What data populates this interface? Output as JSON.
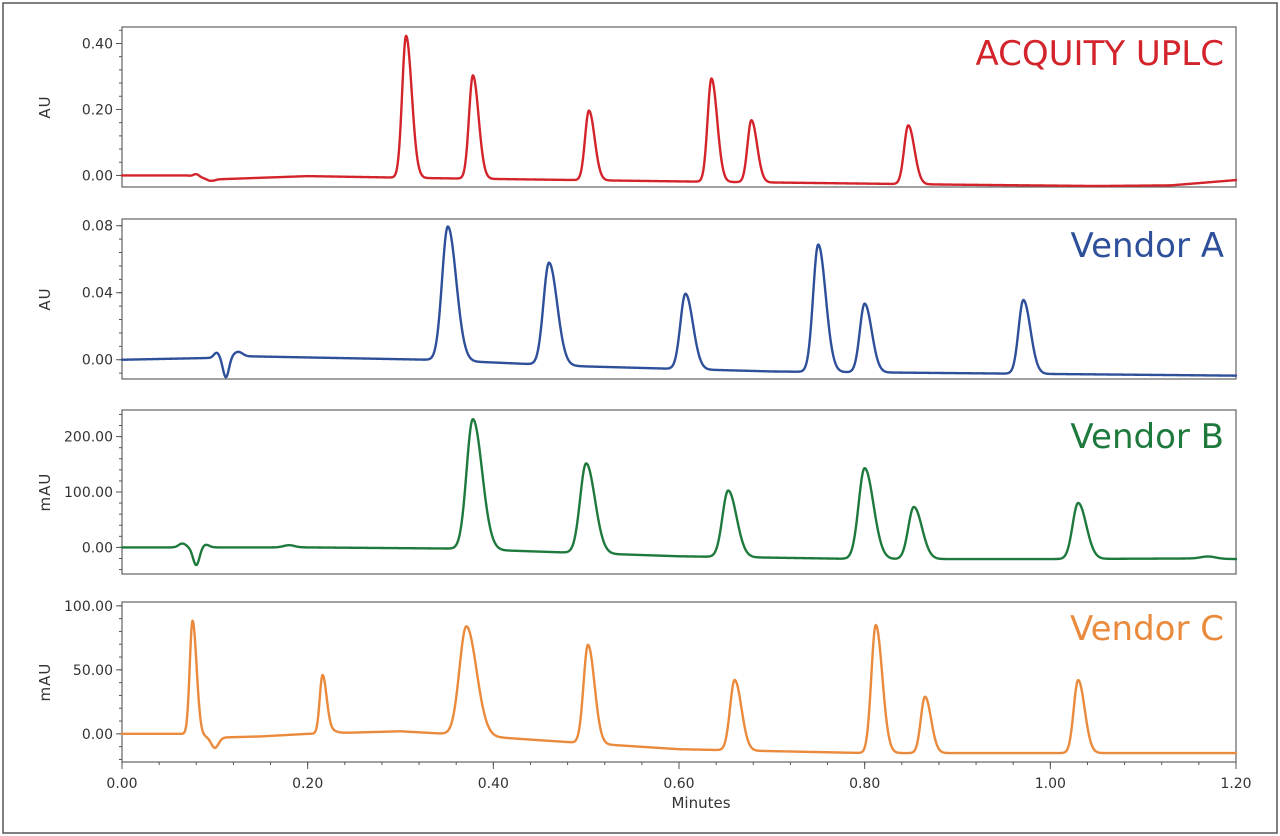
{
  "chart_data": {
    "type": "line",
    "xlabel": "Minutes",
    "x_ticks": [
      "0.00",
      "0.20",
      "0.40",
      "0.60",
      "0.80",
      "1.00",
      "1.20"
    ],
    "xlim": [
      0,
      1.2
    ],
    "panels": [
      {
        "title": "ACQUITY UPLC",
        "ylabel": "AU",
        "color": "#d3242c",
        "ylim": [
          -0.035,
          0.45
        ],
        "y_ticks": [
          0,
          0.2,
          0.4
        ],
        "y_tick_labels": [
          "0.00",
          "0.20",
          "0.40"
        ],
        "baseline": [
          [
            0,
            0
          ],
          [
            0.07,
            0
          ],
          [
            0.1,
            -0.012
          ],
          [
            0.2,
            -0.002
          ],
          [
            0.33,
            -0.008
          ],
          [
            0.6,
            -0.018
          ],
          [
            0.9,
            -0.028
          ],
          [
            1.05,
            -0.032
          ],
          [
            1.13,
            -0.03
          ],
          [
            1.2,
            -0.014
          ]
        ],
        "disturbances": [
          {
            "t": 0.08,
            "h": 0.008,
            "s": 0.003
          },
          {
            "t": 0.095,
            "h": -0.006,
            "s": 0.004
          }
        ],
        "peaks": [
          {
            "rt": 0.306,
            "height": 0.43,
            "width": 0.0042
          },
          {
            "rt": 0.378,
            "height": 0.313,
            "width": 0.0042
          },
          {
            "rt": 0.503,
            "height": 0.211,
            "width": 0.0042
          },
          {
            "rt": 0.635,
            "height": 0.313,
            "width": 0.0042
          },
          {
            "rt": 0.678,
            "height": 0.188,
            "width": 0.0042
          },
          {
            "rt": 0.847,
            "height": 0.178,
            "width": 0.0045
          }
        ]
      },
      {
        "title": "Vendor A",
        "ylabel": "AU",
        "color": "#2e4f9a",
        "ylim": [
          -0.0115,
          0.084
        ],
        "y_ticks": [
          0,
          0.04,
          0.08
        ],
        "y_tick_labels": [
          "0.00",
          "0.04",
          "0.08"
        ],
        "baseline": [
          [
            0,
            0
          ],
          [
            0.09,
            0.001
          ],
          [
            0.14,
            0.002
          ],
          [
            0.33,
            0
          ],
          [
            0.5,
            -0.004
          ],
          [
            0.7,
            -0.007
          ],
          [
            0.9,
            -0.008
          ],
          [
            1.1,
            -0.009
          ],
          [
            1.2,
            -0.0095
          ]
        ],
        "disturbances": [
          {
            "t": 0.102,
            "h": 0.003,
            "s": 0.003
          },
          {
            "t": 0.112,
            "h": -0.012,
            "s": 0.0032
          },
          {
            "t": 0.125,
            "h": 0.003,
            "s": 0.005
          }
        ],
        "peaks": [
          {
            "rt": 0.351,
            "height": 0.08,
            "width": 0.0062
          },
          {
            "rt": 0.46,
            "height": 0.061,
            "width": 0.006
          },
          {
            "rt": 0.607,
            "height": 0.045,
            "width": 0.0055
          },
          {
            "rt": 0.75,
            "height": 0.076,
            "width": 0.0055
          },
          {
            "rt": 0.8,
            "height": 0.041,
            "width": 0.0052
          },
          {
            "rt": 0.971,
            "height": 0.044,
            "width": 0.0052
          }
        ]
      },
      {
        "title": "Vendor B",
        "ylabel": "mAU",
        "color": "#1e7a3c",
        "ylim": [
          -48,
          248
        ],
        "y_ticks": [
          0,
          100,
          200
        ],
        "y_tick_labels": [
          "0.00",
          "100.00",
          "200.00"
        ],
        "baseline": [
          [
            0,
            0
          ],
          [
            0.1,
            0
          ],
          [
            0.2,
            0
          ],
          [
            0.35,
            -2
          ],
          [
            0.6,
            -16
          ],
          [
            0.8,
            -21
          ],
          [
            1.0,
            -21
          ],
          [
            1.15,
            -20
          ],
          [
            1.2,
            -21
          ]
        ],
        "disturbances": [
          {
            "t": 0.065,
            "h": 7,
            "s": 0.004
          },
          {
            "t": 0.08,
            "h": -32,
            "s": 0.0035
          },
          {
            "t": 0.09,
            "h": 5,
            "s": 0.004
          },
          {
            "t": 0.18,
            "h": 4,
            "s": 0.006
          },
          {
            "t": 1.17,
            "h": 4,
            "s": 0.008
          }
        ],
        "peaks": [
          {
            "rt": 0.378,
            "height": 235,
            "width": 0.0068
          },
          {
            "rt": 0.5,
            "height": 162,
            "width": 0.0065
          },
          {
            "rt": 0.653,
            "height": 120,
            "width": 0.0062
          },
          {
            "rt": 0.8,
            "height": 164,
            "width": 0.0065
          },
          {
            "rt": 0.853,
            "height": 94,
            "width": 0.006
          },
          {
            "rt": 1.03,
            "height": 101,
            "width": 0.006
          }
        ]
      },
      {
        "title": "Vendor C",
        "ylabel": "mAU",
        "color": "#ea8a3c",
        "ylim": [
          -22,
          103
        ],
        "y_ticks": [
          0,
          50,
          100
        ],
        "y_tick_labels": [
          "0.00",
          "50.00",
          "100.00"
        ],
        "baseline": [
          [
            0,
            0
          ],
          [
            0.07,
            0
          ],
          [
            0.1,
            -3
          ],
          [
            0.15,
            -2
          ],
          [
            0.2,
            0
          ],
          [
            0.3,
            2
          ],
          [
            0.35,
            0
          ],
          [
            0.45,
            -5
          ],
          [
            0.6,
            -12
          ],
          [
            0.8,
            -15
          ],
          [
            1.0,
            -15
          ],
          [
            1.2,
            -15
          ]
        ],
        "disturbances": [
          {
            "t": 0.1,
            "h": -8,
            "s": 0.004
          },
          {
            "t": 0.225,
            "h": 2,
            "s": 0.006
          }
        ],
        "peaks": [
          {
            "rt": 0.076,
            "height": 89,
            "width": 0.003
          },
          {
            "rt": 0.216,
            "height": 45,
            "width": 0.003
          },
          {
            "rt": 0.371,
            "height": 85,
            "width": 0.0075
          },
          {
            "rt": 0.502,
            "height": 77,
            "width": 0.0048
          },
          {
            "rt": 0.66,
            "height": 55,
            "width": 0.005
          },
          {
            "rt": 0.812,
            "height": 100,
            "width": 0.0048
          },
          {
            "rt": 0.865,
            "height": 44,
            "width": 0.0045
          },
          {
            "rt": 1.03,
            "height": 57,
            "width": 0.0048
          }
        ]
      }
    ]
  }
}
